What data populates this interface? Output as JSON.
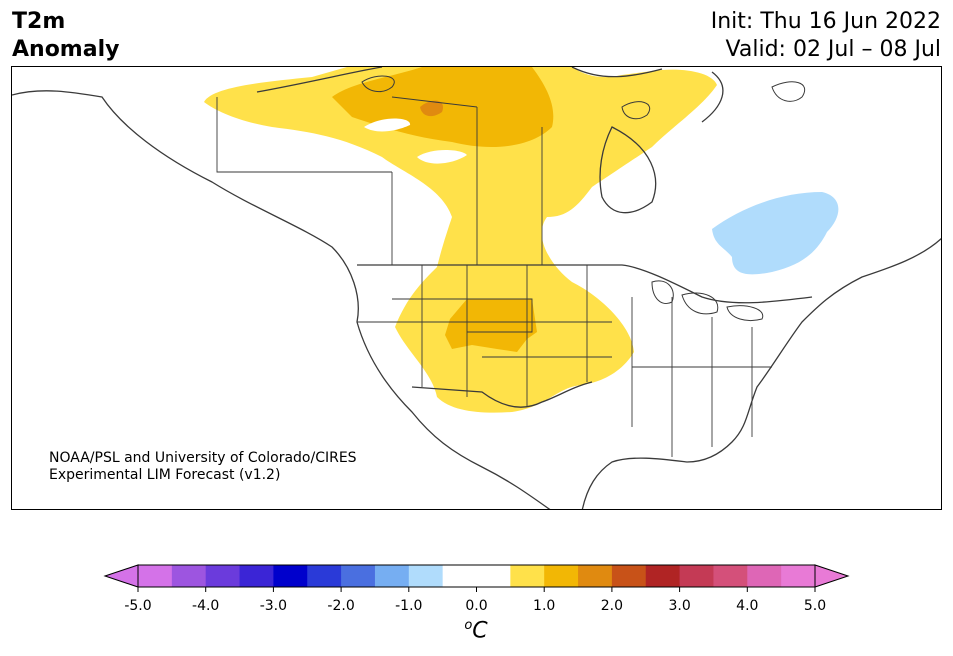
{
  "header": {
    "variable": "T2m",
    "subtitle": "Anomaly",
    "init": "Init: Thu 16 Jun 2022",
    "valid": "Valid: 02 Jul – 08 Jul"
  },
  "credit": {
    "line1": "NOAA/PSL and University of Colorado/CIRES",
    "line2": "Experimental LIM Forecast (v1.2)"
  },
  "colorbar": {
    "unit_sup": "o",
    "unit": "C",
    "tick_labels": [
      "-5.0",
      "-4.0",
      "-3.0",
      "-2.0",
      "-1.0",
      "0.0",
      "1.0",
      "2.0",
      "3.0",
      "4.0",
      "5.0"
    ],
    "colors": [
      "#d472e8",
      "#9d55e0",
      "#6b3bdc",
      "#3b25d6",
      "#0000cc",
      "#2a3ad8",
      "#4a6fe0",
      "#76aef2",
      "#b0dcfc",
      "#ffffff",
      "#ffffff",
      "#ffe14a",
      "#f2b705",
      "#e08a10",
      "#c85218",
      "#b02424",
      "#c43a55",
      "#d4507a",
      "#de66b6",
      "#e87ad6"
    ],
    "extend_low_color": "#d472e8",
    "extend_high_color": "#e87ad6"
  },
  "map": {
    "land_outline_color": "#3a3a3a",
    "warm_light": "#ffe14a",
    "warm_mid": "#f2b705",
    "warm_dark": "#e08a10",
    "cool_light": "#b0dcfc"
  }
}
